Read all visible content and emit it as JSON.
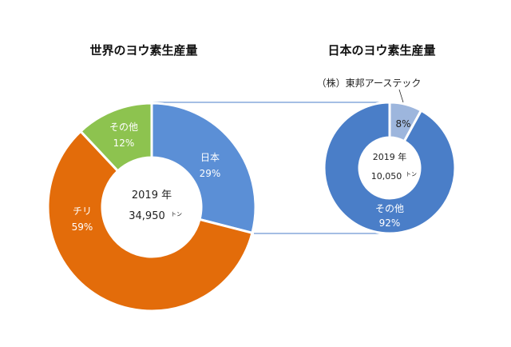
{
  "chart_data": [
    {
      "type": "pie",
      "title": "世界のヨウ素生産量",
      "center_line1": "2019 年",
      "center_line2": "34,950",
      "center_unit": "トン",
      "slices": [
        {
          "label": "日本",
          "value": 29,
          "value_text": "29%",
          "color": "#5b8fd6"
        },
        {
          "label": "チリ",
          "value": 59,
          "value_text": "59%",
          "color": "#e36c0a"
        },
        {
          "label": "その他",
          "value": 12,
          "value_text": "12%",
          "color": "#8dc34f"
        }
      ]
    },
    {
      "type": "pie",
      "title": "日本のヨウ素生産量",
      "center_line1": "2019 年",
      "center_line2": "10,050",
      "center_unit": "トン",
      "slices": [
        {
          "label": "（株）東邦アーステック",
          "value": 8,
          "value_text": "8%",
          "color": "#9db6dd"
        },
        {
          "label": "その他",
          "value": 92,
          "value_text": "92%",
          "color": "#4a7ec8"
        }
      ]
    }
  ]
}
